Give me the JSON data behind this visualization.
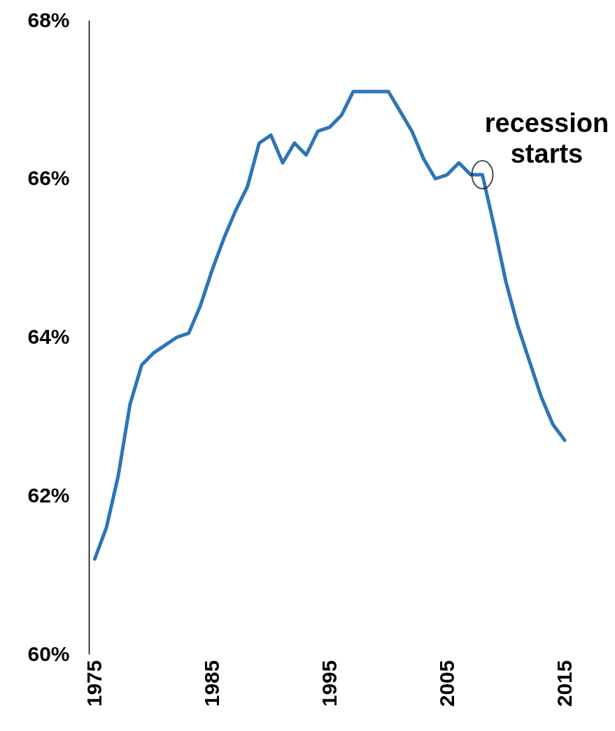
{
  "chart_data": {
    "type": "line",
    "x": [
      1975,
      1976,
      1977,
      1978,
      1979,
      1980,
      1981,
      1982,
      1983,
      1984,
      1985,
      1986,
      1987,
      1988,
      1989,
      1990,
      1991,
      1992,
      1993,
      1994,
      1995,
      1996,
      1997,
      1998,
      1999,
      2000,
      2001,
      2002,
      2003,
      2004,
      2005,
      2006,
      2007,
      2008,
      2009,
      2010,
      2011,
      2012,
      2013,
      2014,
      2015
    ],
    "series": [
      {
        "color": "#2e75b6",
        "values": [
          61.2,
          61.6,
          62.25,
          63.15,
          63.65,
          63.8,
          63.9,
          64.0,
          64.05,
          64.4,
          64.85,
          65.25,
          65.6,
          65.9,
          66.45,
          66.55,
          66.2,
          66.45,
          66.3,
          66.6,
          66.65,
          66.8,
          67.1,
          67.1,
          67.1,
          67.1,
          66.85,
          66.6,
          66.25,
          66.0,
          66.05,
          66.2,
          66.05,
          66.05,
          65.4,
          64.7,
          64.15,
          63.7,
          63.25,
          62.9,
          62.7
        ]
      }
    ],
    "xlim": [
      1974.5,
      2015
    ],
    "xticks": [
      1975,
      1985,
      1995,
      2005,
      2015
    ],
    "ylim": [
      60,
      68
    ],
    "yticks": [
      {
        "value": 60,
        "label": "60%"
      },
      {
        "value": 62,
        "label": "62%"
      },
      {
        "value": 64,
        "label": "64%"
      },
      {
        "value": 66,
        "label": "66%"
      },
      {
        "value": 68,
        "label": "68%"
      }
    ],
    "grid": false,
    "line_style": "solid",
    "marker": "none",
    "annotations": [
      {
        "text": "recession starts",
        "x": 2008,
        "y": 66.05
      }
    ]
  }
}
